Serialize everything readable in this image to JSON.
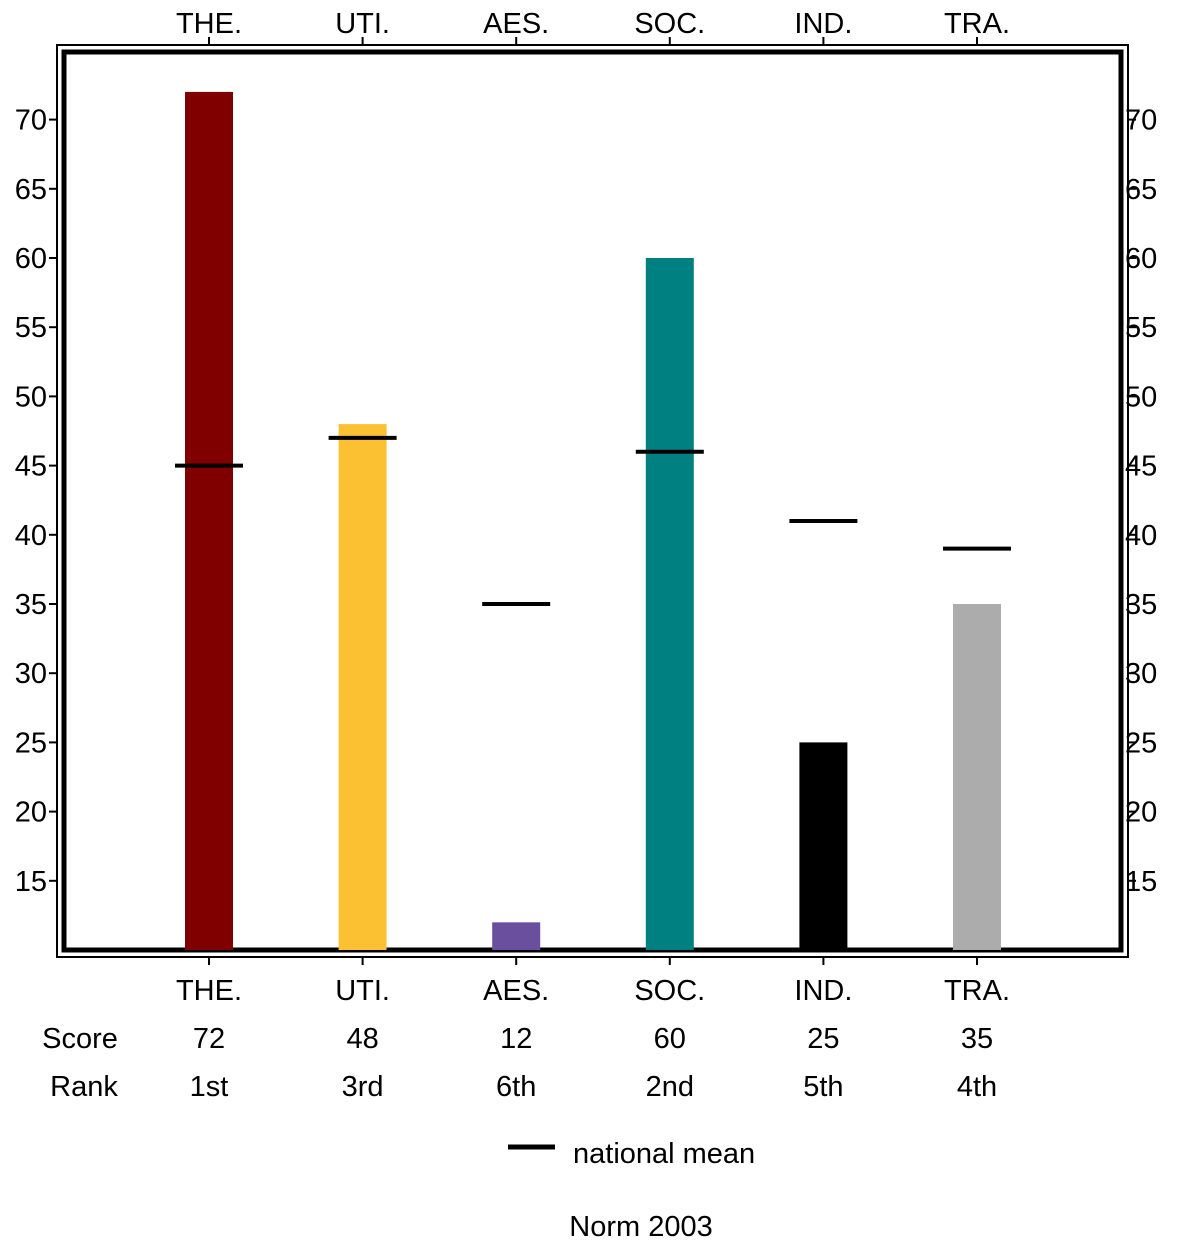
{
  "chart_data": {
    "type": "bar",
    "categories": [
      "THE.",
      "UTI.",
      "AES.",
      "SOC.",
      "IND.",
      "TRA."
    ],
    "values": [
      72,
      48,
      12,
      60,
      25,
      35
    ],
    "national_mean": [
      45,
      47,
      35,
      46,
      41,
      39
    ],
    "colors": [
      "#800000",
      "#FCC033",
      "#6A4F9E",
      "#008080",
      "#000000",
      "#ACACAC"
    ],
    "mean_color": "#000000",
    "ylim": [
      10,
      74
    ],
    "yticks": [
      15,
      20,
      25,
      30,
      35,
      40,
      45,
      50,
      55,
      60,
      65,
      70
    ],
    "score_label": "Score",
    "rank_label": "Rank",
    "scores": [
      "72",
      "48",
      "12",
      "60",
      "25",
      "35"
    ],
    "ranks": [
      "1st",
      "3rd",
      "6th",
      "2nd",
      "5th",
      "4th"
    ],
    "legend": {
      "label": "national mean",
      "placement": "bottom-center"
    },
    "footer": "Norm 2003",
    "grid": false
  }
}
